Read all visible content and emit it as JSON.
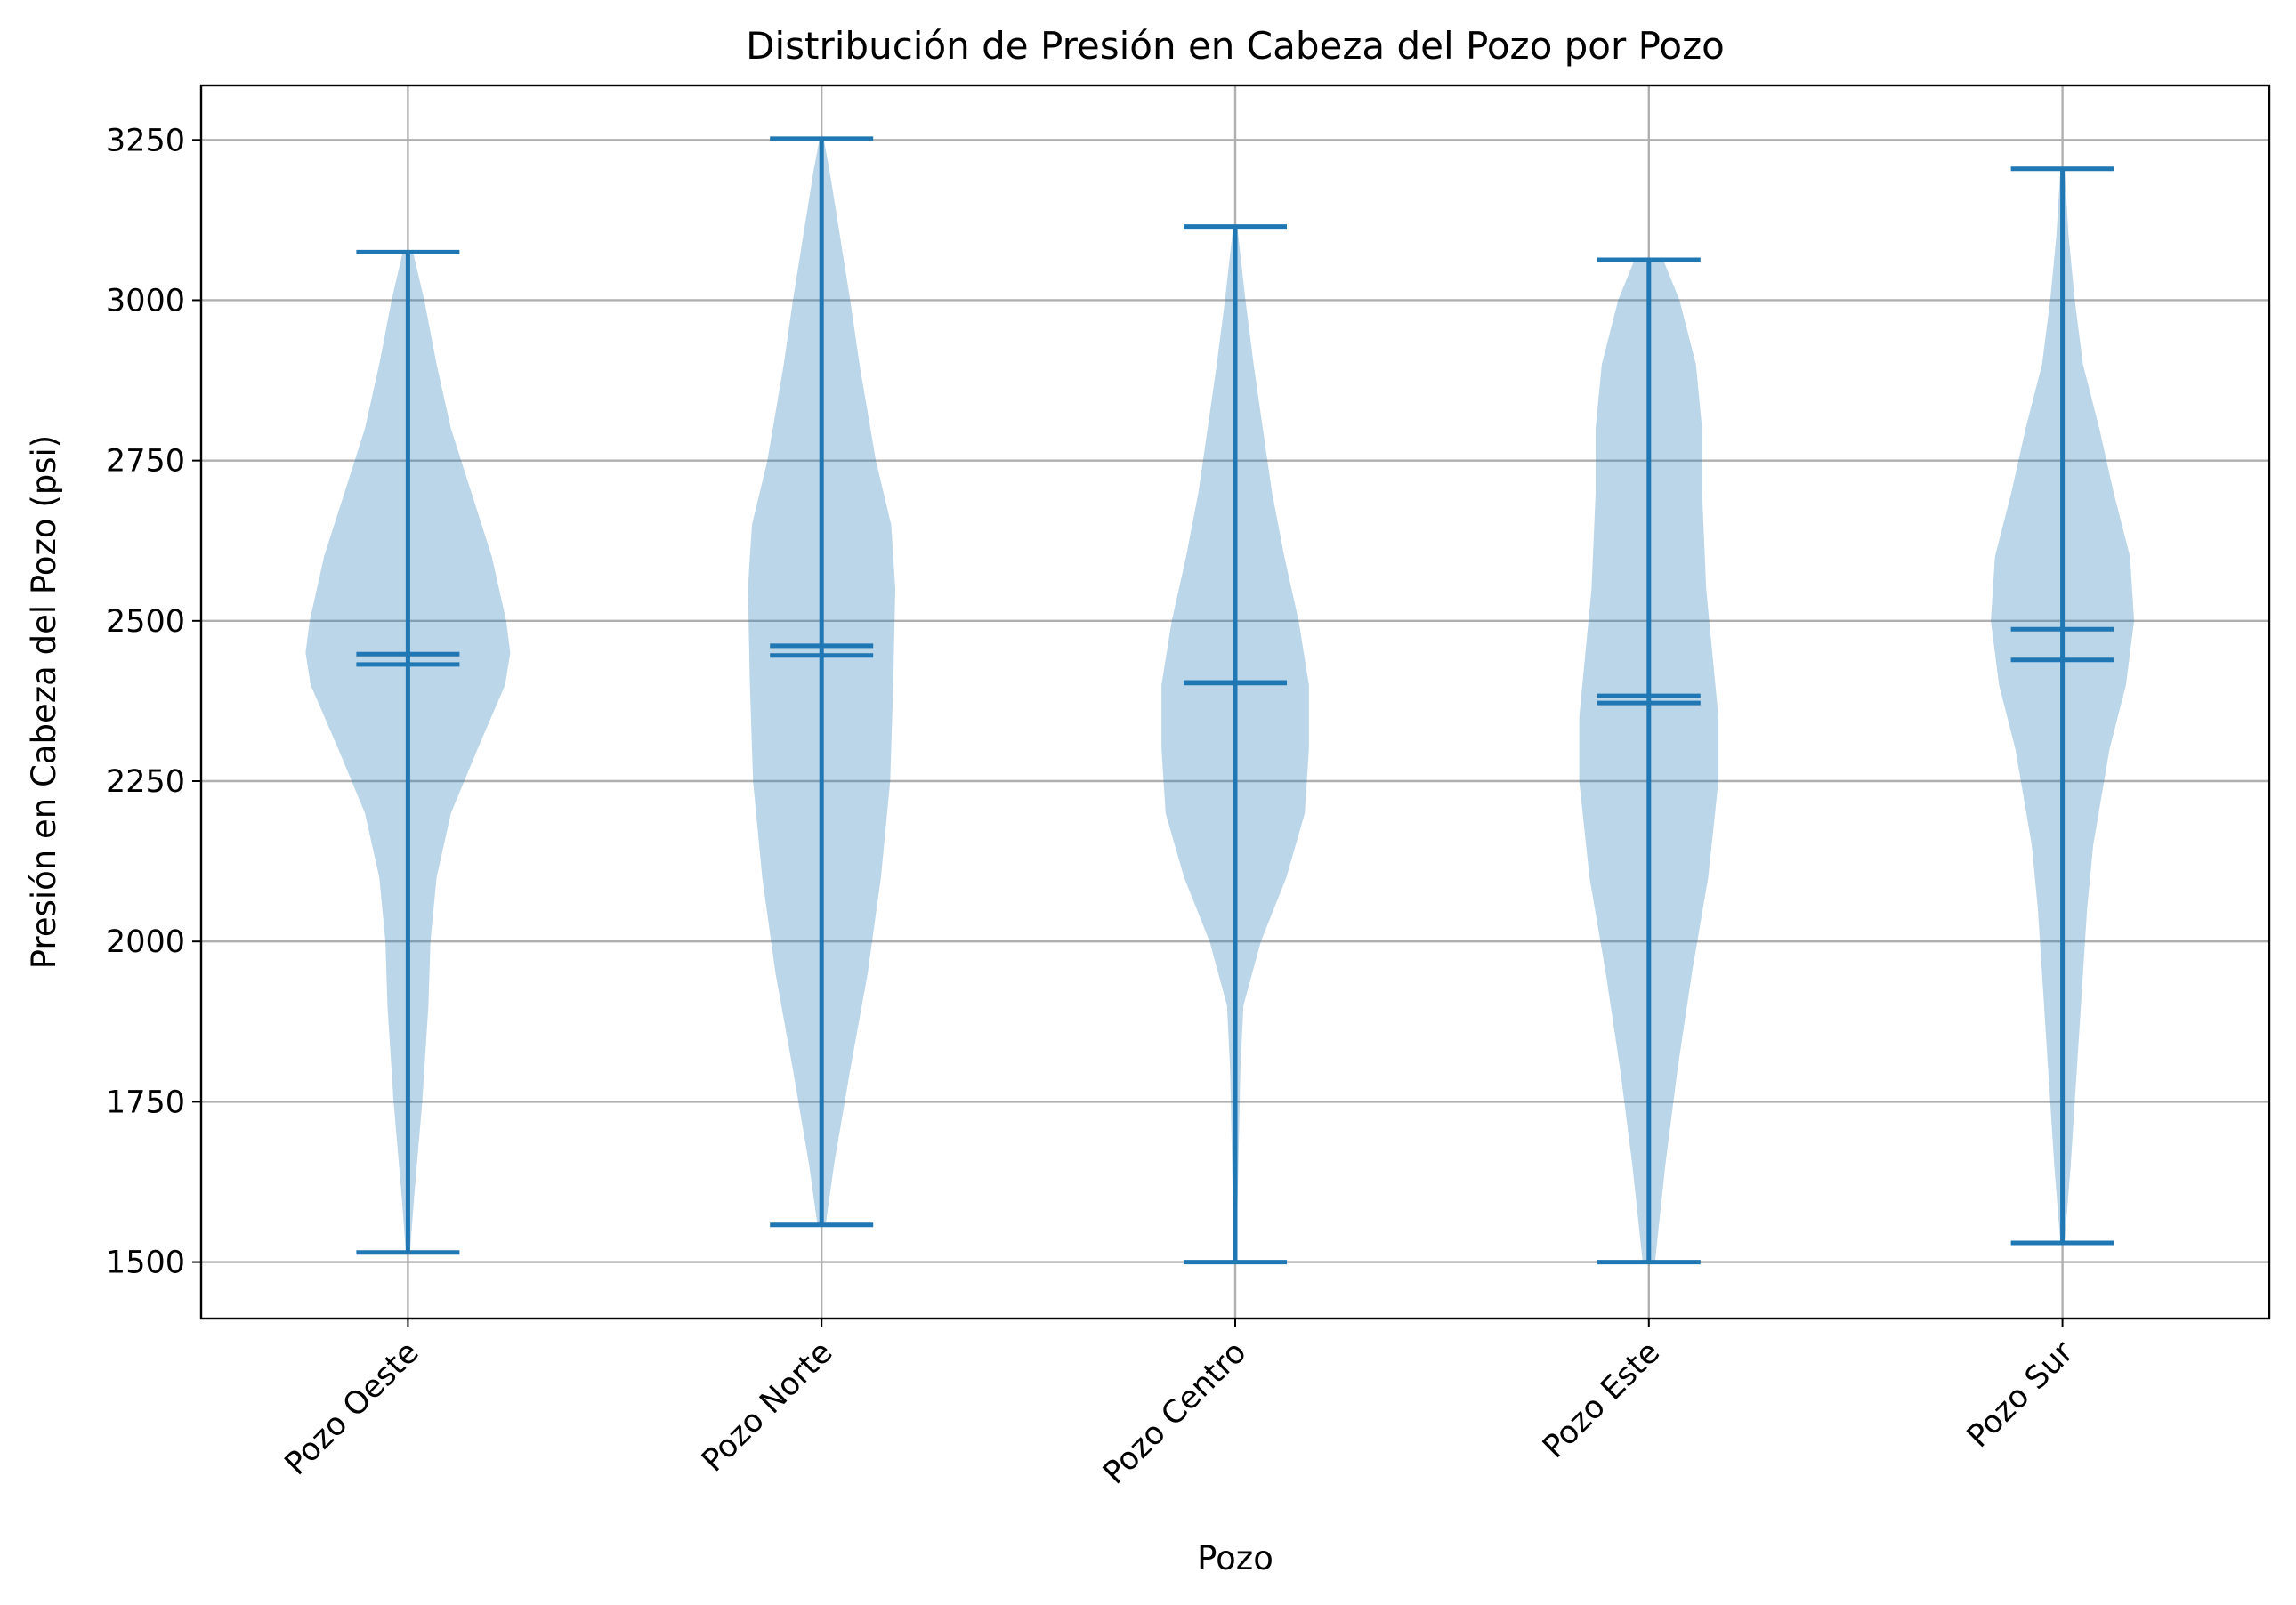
{
  "chart_data": {
    "type": "violin",
    "title": "Distribución de Presión en Cabeza del Pozo por Pozo",
    "xlabel": "Pozo",
    "ylabel": "Presión en Cabeza del Pozo (psi)",
    "ylim": [
      1412,
      3335
    ],
    "yticks": [
      1500,
      1750,
      2000,
      2250,
      2500,
      2750,
      3000,
      3250
    ],
    "grid": true,
    "color": "#1f77b4",
    "categories": [
      "Pozo Oeste",
      "Pozo Norte",
      "Pozo Centro",
      "Pozo Este",
      "Pozo Sur"
    ],
    "violins": [
      {
        "name": "Pozo Oeste",
        "min": 1515,
        "max": 3075,
        "mean": 2448,
        "median": 2432,
        "density": [
          [
            1515,
            0.02
          ],
          [
            1600,
            0.06
          ],
          [
            1750,
            0.14
          ],
          [
            1900,
            0.2
          ],
          [
            2000,
            0.22
          ],
          [
            2100,
            0.28
          ],
          [
            2200,
            0.42
          ],
          [
            2300,
            0.68
          ],
          [
            2400,
            0.95
          ],
          [
            2450,
            1.0
          ],
          [
            2500,
            0.96
          ],
          [
            2600,
            0.82
          ],
          [
            2700,
            0.62
          ],
          [
            2800,
            0.42
          ],
          [
            2900,
            0.28
          ],
          [
            3000,
            0.16
          ],
          [
            3075,
            0.05
          ]
        ]
      },
      {
        "name": "Pozo Norte",
        "min": 1558,
        "max": 3252,
        "mean": 2461,
        "median": 2446,
        "density": [
          [
            1558,
            0.04
          ],
          [
            1650,
            0.12
          ],
          [
            1800,
            0.28
          ],
          [
            1950,
            0.45
          ],
          [
            2100,
            0.58
          ],
          [
            2250,
            0.67
          ],
          [
            2400,
            0.7
          ],
          [
            2550,
            0.72
          ],
          [
            2650,
            0.68
          ],
          [
            2750,
            0.53
          ],
          [
            2900,
            0.37
          ],
          [
            3000,
            0.28
          ],
          [
            3100,
            0.18
          ],
          [
            3200,
            0.08
          ],
          [
            3252,
            0.02
          ]
        ]
      },
      {
        "name": "Pozo Centro",
        "min": 1500,
        "max": 3115,
        "mean": 2404,
        "median": 2403,
        "density": [
          [
            1500,
            0.01
          ],
          [
            1650,
            0.03
          ],
          [
            1800,
            0.05
          ],
          [
            1900,
            0.08
          ],
          [
            2000,
            0.25
          ],
          [
            2100,
            0.5
          ],
          [
            2200,
            0.68
          ],
          [
            2300,
            0.72
          ],
          [
            2400,
            0.72
          ],
          [
            2500,
            0.62
          ],
          [
            2600,
            0.48
          ],
          [
            2700,
            0.36
          ],
          [
            2800,
            0.27
          ],
          [
            2900,
            0.18
          ],
          [
            3000,
            0.1
          ],
          [
            3115,
            0.02
          ]
        ]
      },
      {
        "name": "Pozo Este",
        "min": 1500,
        "max": 3063,
        "mean": 2383,
        "median": 2372,
        "density": [
          [
            1500,
            0.06
          ],
          [
            1650,
            0.16
          ],
          [
            1800,
            0.28
          ],
          [
            1950,
            0.42
          ],
          [
            2100,
            0.58
          ],
          [
            2250,
            0.68
          ],
          [
            2350,
            0.68
          ],
          [
            2450,
            0.62
          ],
          [
            2550,
            0.56
          ],
          [
            2700,
            0.52
          ],
          [
            2800,
            0.52
          ],
          [
            2900,
            0.46
          ],
          [
            3000,
            0.3
          ],
          [
            3063,
            0.14
          ]
        ]
      },
      {
        "name": "Pozo Sur",
        "min": 1530,
        "max": 3205,
        "mean": 2487,
        "median": 2439,
        "density": [
          [
            1530,
            0.02
          ],
          [
            1650,
            0.08
          ],
          [
            1800,
            0.14
          ],
          [
            1950,
            0.2
          ],
          [
            2050,
            0.24
          ],
          [
            2150,
            0.3
          ],
          [
            2300,
            0.46
          ],
          [
            2400,
            0.62
          ],
          [
            2500,
            0.7
          ],
          [
            2600,
            0.66
          ],
          [
            2700,
            0.5
          ],
          [
            2800,
            0.36
          ],
          [
            2900,
            0.2
          ],
          [
            3000,
            0.12
          ],
          [
            3100,
            0.06
          ],
          [
            3205,
            0.02
          ]
        ]
      }
    ]
  }
}
